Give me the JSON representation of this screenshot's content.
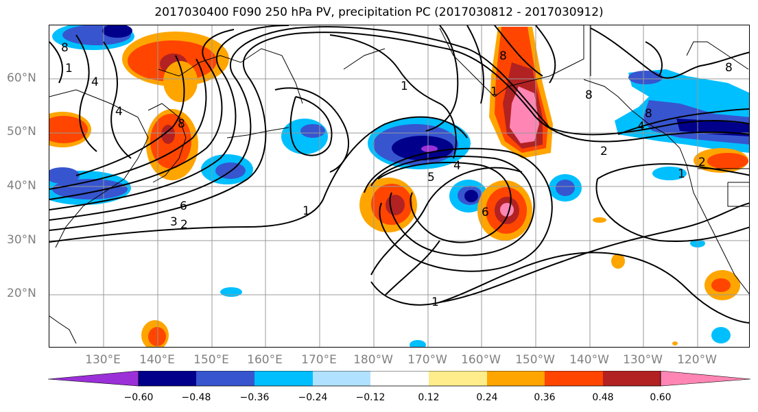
{
  "title": "2017030400 F090 250 hPa PV, precipitation PC (2017030812 - 2017030912)",
  "lat_labels": [
    "60°N",
    "50°N",
    "40°N",
    "30°N",
    "20°N"
  ],
  "lon_labels": [
    "130°E",
    "140°E",
    "150°E",
    "160°E",
    "170°E",
    "180°W",
    "170°W",
    "160°W",
    "150°W",
    "140°W",
    "130°W",
    "120°W"
  ],
  "contour_labels": [
    "8",
    "4",
    "1",
    "4",
    "8",
    "6",
    "3",
    "2",
    "1",
    "5",
    "4",
    "1",
    "6",
    "8",
    "1",
    "8",
    "8",
    "4",
    "2",
    "1",
    "2",
    "8",
    "1"
  ],
  "colorbar": {
    "tick_labels": [
      "−0.60",
      "−0.48",
      "−0.36",
      "−0.24",
      "−0.12",
      "0.12",
      "0.24",
      "0.36",
      "0.48",
      "0.60"
    ],
    "colors": [
      "#9b30d9",
      "#00008b",
      "#3755cf",
      "#00bfff",
      "#b0e2ff",
      "#ffffff",
      "#ffec8b",
      "#ffa500",
      "#ff4500",
      "#b22222",
      "#ff86b4",
      "#ff86b4"
    ]
  },
  "colors": {
    "grid": "#999999",
    "contour": "#000000",
    "axis_text": "#808080"
  }
}
